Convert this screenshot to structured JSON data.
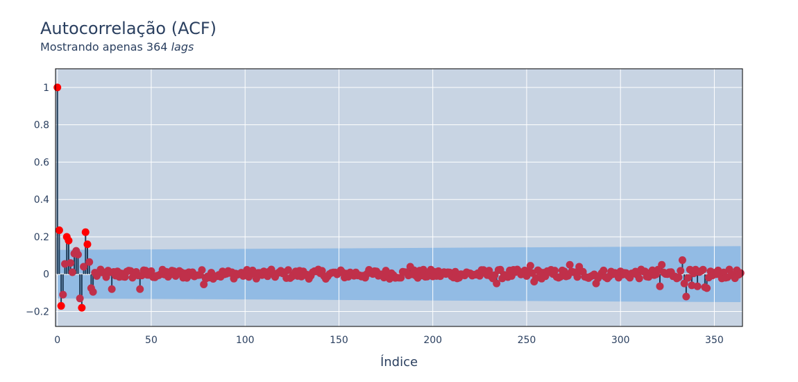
{
  "title": "Autocorrelação (ACF)",
  "subtitle": {
    "prefix": "Mostrando apenas 364 ",
    "italic": "lags"
  },
  "colors": {
    "plot_bg": "#c8d4e3",
    "band": "#92bbe4",
    "grid": "#ffffff",
    "stem": "#1f3b57",
    "marker_significant": "#ff0000",
    "marker": "#c0304a",
    "text": "#2a3f5f"
  },
  "chart_data": {
    "type": "scatter",
    "xlabel": "Índice",
    "ylabel": "",
    "xlim": [
      -1,
      365
    ],
    "ylim": [
      -0.28,
      1.1
    ],
    "x_ticks": [
      0,
      50,
      100,
      150,
      200,
      250,
      300,
      350
    ],
    "y_ticks": [
      -0.2,
      0,
      0.2,
      0.4,
      0.6,
      0.8,
      1
    ],
    "y_tick_labels": [
      "−0.2",
      "0",
      "0.2",
      "0.4",
      "0.6",
      "0.8",
      "1"
    ],
    "grid": true,
    "confidence_band": {
      "start": [
        0,
        0.13
      ],
      "end": [
        364,
        0.15
      ]
    },
    "acf_head": [
      1.0,
      0.235,
      -0.17,
      -0.11,
      0.055,
      0.2,
      0.18,
      0.06,
      0.01,
      0.11,
      0.125,
      0.105,
      -0.13,
      -0.18,
      0.04,
      0.225,
      0.16,
      0.065,
      -0.075,
      -0.095
    ],
    "significant_lags": [
      0,
      1,
      2,
      5,
      6,
      13,
      15,
      16
    ],
    "acf_tail_amplitude": 0.025,
    "notable_lags": {
      "29": -0.08,
      "44": -0.08,
      "78": -0.055,
      "188": 0.04,
      "234": -0.05,
      "252": 0.045,
      "254": -0.04,
      "273": 0.05,
      "278": 0.04,
      "287": -0.05,
      "321": -0.065,
      "322": 0.05,
      "333": 0.075,
      "334": -0.05,
      "335": -0.12,
      "338": -0.06,
      "341": -0.065,
      "345": -0.07,
      "346": -0.075
    }
  }
}
